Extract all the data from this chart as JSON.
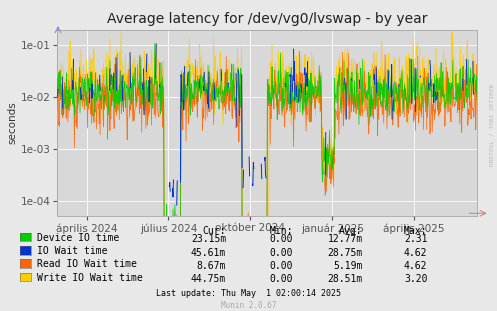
{
  "title": "Average latency for /dev/vg0/lvswap - by year",
  "ylabel": "seconds",
  "background_color": "#e8e8e8",
  "plot_bg_color": "#d8d8d8",
  "grid_color": "#ffffff",
  "dot_grid_color": "#ffaaaa",
  "x_tick_labels": [
    "április 2024",
    "július 2024",
    "október 2024",
    "január 2025",
    "április 2025"
  ],
  "x_tick_positions": [
    0.07,
    0.265,
    0.46,
    0.655,
    0.85
  ],
  "yticks": [
    0.0001,
    0.001,
    0.01,
    0.1
  ],
  "ytick_labels": [
    "1e-04",
    "1e-03",
    "1e-02",
    "1e-01"
  ],
  "legend_entries": [
    {
      "label": "Device IO time",
      "color": "#00cc00"
    },
    {
      "label": "IO Wait time",
      "color": "#0033cc"
    },
    {
      "label": "Read IO Wait time",
      "color": "#ff6600"
    },
    {
      "label": "Write IO Wait time",
      "color": "#ffcc00"
    }
  ],
  "table_headers": [
    "Cur:",
    "Min:",
    "Avg:",
    "Max:"
  ],
  "table_rows": [
    [
      "23.15m",
      "0.00",
      "12.77m",
      "2.31"
    ],
    [
      "45.61m",
      "0.00",
      "28.75m",
      "4.62"
    ],
    [
      "8.67m",
      "0.00",
      "5.19m",
      "4.62"
    ],
    [
      "44.75m",
      "0.00",
      "28.51m",
      "3.20"
    ]
  ],
  "footer": "Last update: Thu May  1 02:00:14 2025",
  "watermark": "Munin 2.0.67",
  "rrdtool_label": "RRDTOOL / TOBI OETIKER",
  "title_fontsize": 10,
  "axis_fontsize": 7.5,
  "legend_fontsize": 7.0,
  "table_fontsize": 7.0,
  "seed": 42
}
